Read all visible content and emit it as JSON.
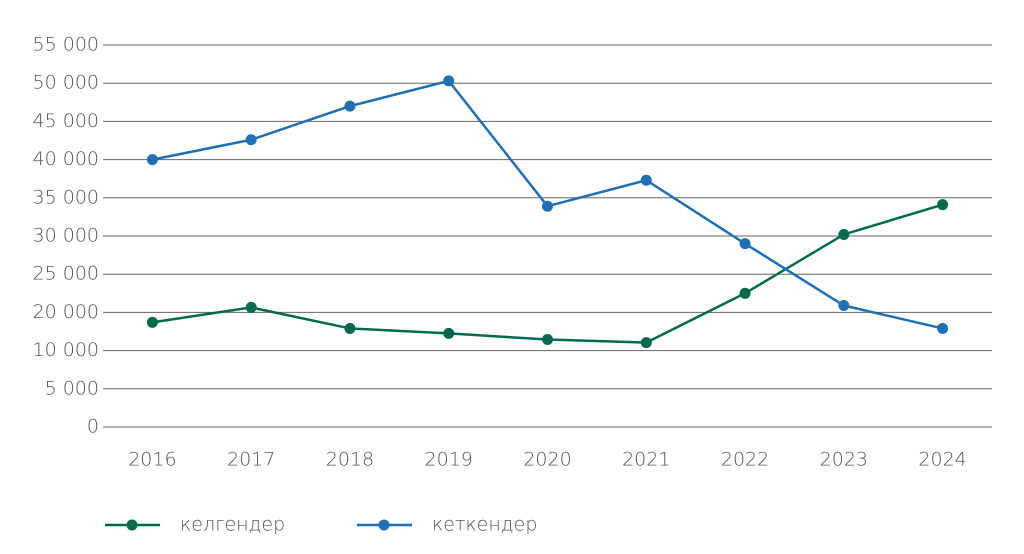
{
  "chart_data": {
    "type": "line",
    "categories": [
      "2016",
      "2017",
      "2018",
      "2019",
      "2020",
      "2021",
      "2022",
      "2023",
      "2024"
    ],
    "series": [
      {
        "name": "келгендер",
        "color": "#006a4e",
        "values": [
          17400,
          20650,
          15800,
          14500,
          12900,
          12100,
          22500,
          30200,
          34100
        ]
      },
      {
        "name": "кеткендер",
        "color": "#1f6fb5",
        "values": [
          40000,
          42600,
          47000,
          50300,
          33900,
          37300,
          29000,
          20900,
          15800
        ]
      }
    ],
    "ylim": [
      0,
      55000
    ],
    "yticks": [
      0,
      {
        "value": 5000,
        "label": "5 000"
      },
      {
        "value": 10000,
        "label": "10 000"
      },
      {
        "value": 20000,
        "label": "20 000"
      },
      {
        "value": 25000,
        "label": "25 000"
      },
      {
        "value": 30000,
        "label": "30 000"
      },
      {
        "value": 35000,
        "label": "35 000"
      },
      {
        "value": 40000,
        "label": "40 000"
      },
      {
        "value": 45000,
        "label": "45 000"
      },
      {
        "value": 50000,
        "label": "50 000"
      },
      {
        "value": 55000,
        "label": "55 000"
      }
    ],
    "grid": true,
    "legend": "bottom"
  }
}
